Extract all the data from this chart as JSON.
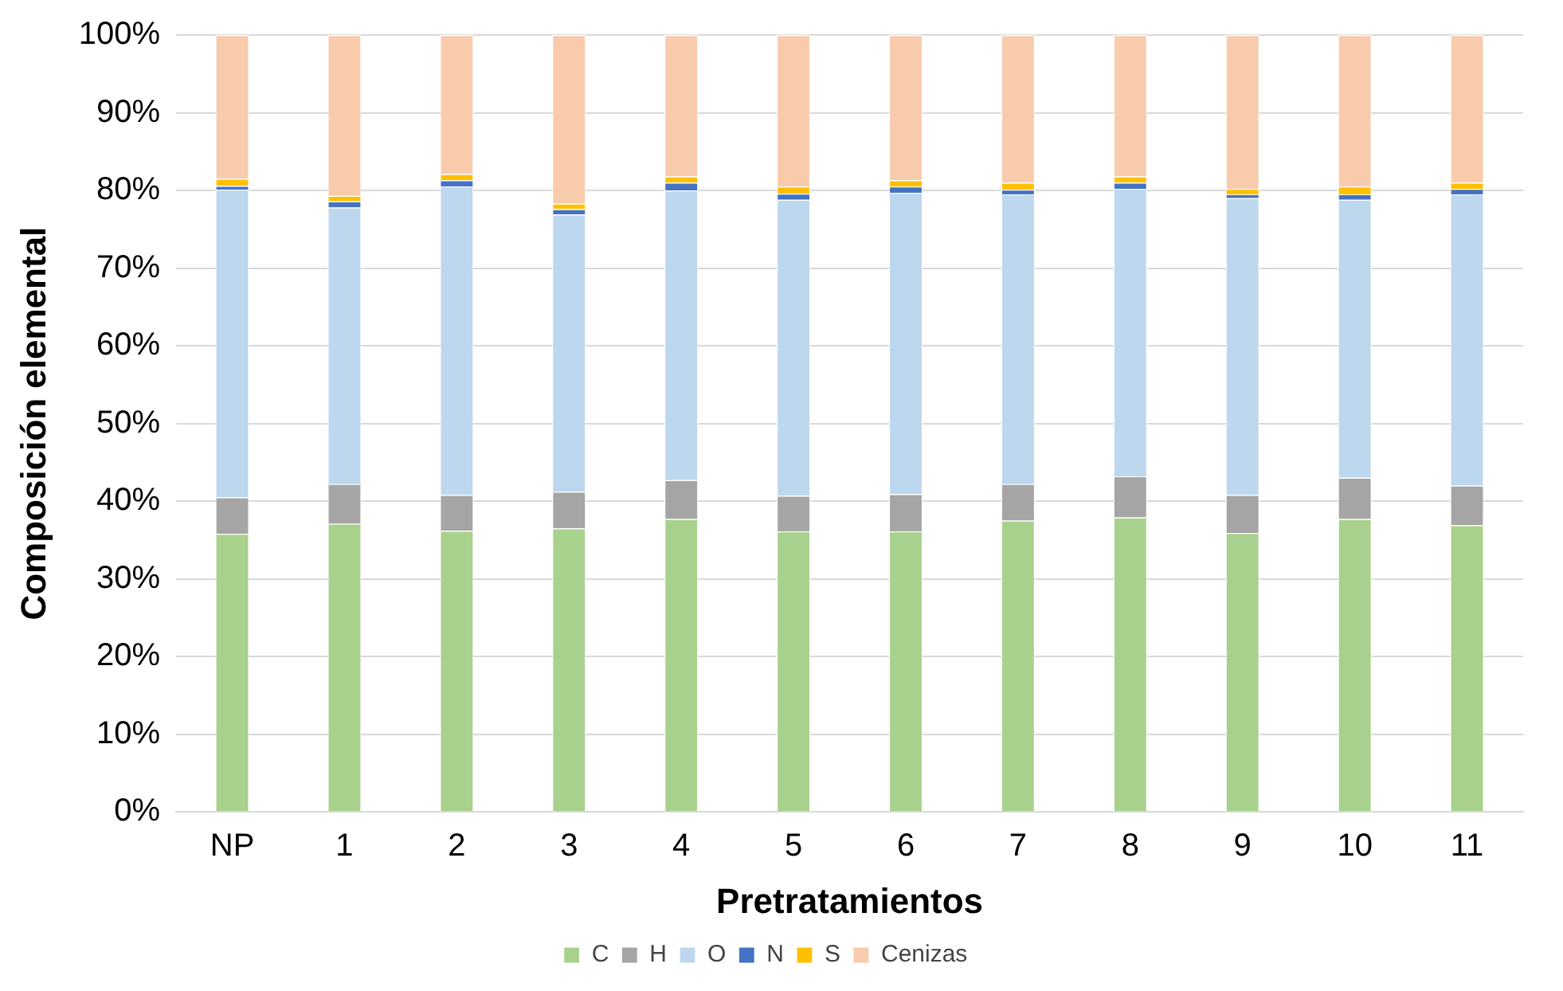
{
  "chart_data": {
    "type": "bar",
    "stacked": true,
    "xlabel": "Pretratamientos",
    "ylabel": "Composición elemental",
    "categories": [
      "NP",
      "1",
      "2",
      "3",
      "4",
      "5",
      "6",
      "7",
      "8",
      "9",
      "10",
      "11"
    ],
    "series": [
      {
        "name": "C",
        "color": "#a9d18e",
        "values": [
          35.8,
          37.1,
          36.2,
          36.5,
          37.7,
          36.1,
          36.1,
          37.5,
          37.9,
          35.9,
          37.7,
          36.9
        ]
      },
      {
        "name": "H",
        "color": "#a5a5a5",
        "values": [
          4.7,
          5.1,
          4.6,
          4.7,
          5.0,
          4.6,
          4.8,
          4.7,
          5.3,
          4.9,
          5.3,
          5.1
        ]
      },
      {
        "name": "O",
        "color": "#bdd7ee",
        "values": [
          39.6,
          35.6,
          39.7,
          35.7,
          37.3,
          38.1,
          38.8,
          37.3,
          37.0,
          38.2,
          35.8,
          37.5
        ]
      },
      {
        "name": "N",
        "color": "#4472c4",
        "values": [
          0.5,
          0.8,
          0.8,
          0.7,
          1.0,
          0.8,
          0.8,
          0.6,
          0.8,
          0.5,
          0.7,
          0.7
        ]
      },
      {
        "name": "S",
        "color": "#ffc000",
        "values": [
          0.9,
          0.7,
          0.8,
          0.7,
          0.8,
          0.9,
          0.8,
          0.9,
          0.8,
          0.7,
          1.0,
          0.8
        ]
      },
      {
        "name": "Cenizas",
        "color": "#f8cbad",
        "values": [
          18.5,
          20.7,
          17.9,
          21.7,
          18.2,
          19.5,
          18.7,
          19.0,
          18.2,
          19.8,
          19.5,
          19.0
        ]
      }
    ],
    "ylim": [
      0,
      100
    ],
    "yticks": [
      {
        "value": 0,
        "label": "0%"
      },
      {
        "value": 10,
        "label": "10%"
      },
      {
        "value": 20,
        "label": "20%"
      },
      {
        "value": 30,
        "label": "30%"
      },
      {
        "value": 40,
        "label": "40%"
      },
      {
        "value": 50,
        "label": "50%"
      },
      {
        "value": 60,
        "label": "60%"
      },
      {
        "value": 70,
        "label": "70%"
      },
      {
        "value": 80,
        "label": "80%"
      },
      {
        "value": 90,
        "label": "90%"
      },
      {
        "value": 100,
        "label": "100%"
      }
    ],
    "grid": "y",
    "legend": "bottom"
  }
}
